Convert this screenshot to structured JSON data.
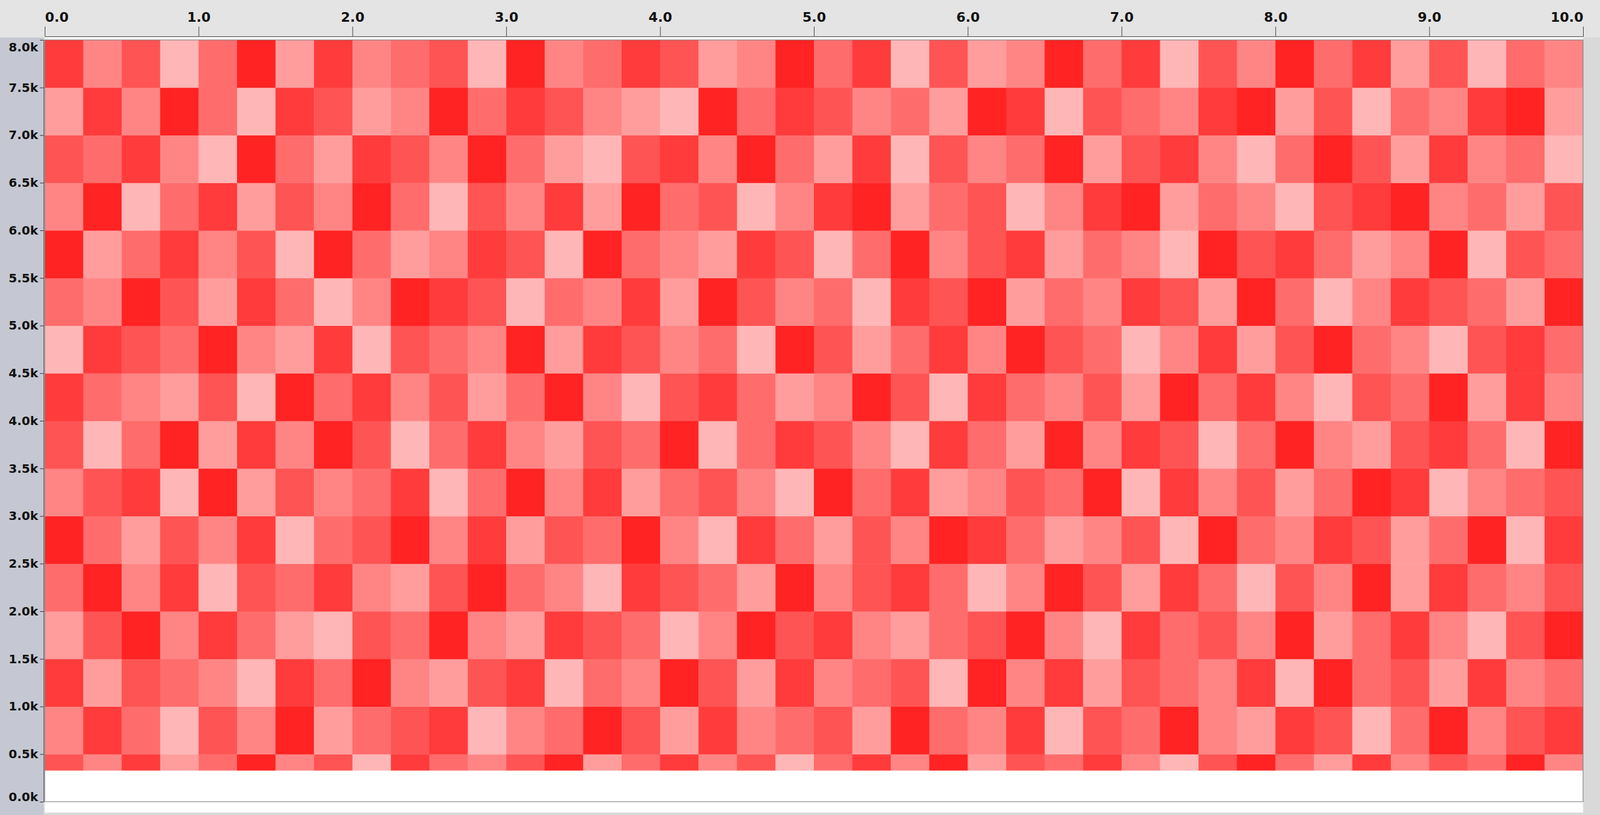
{
  "chart_data": {
    "type": "heatmap",
    "xlim": [
      0,
      10
    ],
    "ylim": [
      0,
      8000
    ],
    "zlim": [
      0,
      1
    ],
    "xticks": [
      {
        "value": 0,
        "label": "0.0"
      },
      {
        "value": 1,
        "label": "1.0"
      },
      {
        "value": 2,
        "label": "2.0"
      },
      {
        "value": 3,
        "label": "3.0"
      },
      {
        "value": 4,
        "label": "4.0"
      },
      {
        "value": 5,
        "label": "5.0"
      },
      {
        "value": 6,
        "label": "6.0"
      },
      {
        "value": 7,
        "label": "7.0"
      },
      {
        "value": 8,
        "label": "8.0"
      },
      {
        "value": 9,
        "label": "9.0"
      },
      {
        "value": 10,
        "label": "10.0"
      }
    ],
    "yticks": [
      {
        "value": 0,
        "label": "0.0k"
      },
      {
        "value": 500,
        "label": "0.5k"
      },
      {
        "value": 1000,
        "label": "1.0k"
      },
      {
        "value": 1500,
        "label": "1.5k"
      },
      {
        "value": 2000,
        "label": "2.0k"
      },
      {
        "value": 2500,
        "label": "2.5k"
      },
      {
        "value": 3000,
        "label": "3.0k"
      },
      {
        "value": 3500,
        "label": "3.5k"
      },
      {
        "value": 4000,
        "label": "4.0k"
      },
      {
        "value": 4500,
        "label": "4.5k"
      },
      {
        "value": 5000,
        "label": "5.0k"
      },
      {
        "value": 5500,
        "label": "5.5k"
      },
      {
        "value": 6000,
        "label": "6.0k"
      },
      {
        "value": 6500,
        "label": "6.5k"
      },
      {
        "value": 7000,
        "label": "7.0k"
      },
      {
        "value": 7500,
        "label": "7.5k"
      },
      {
        "value": 8000,
        "label": "8.0k"
      }
    ],
    "x_bins": [
      0,
      0.25,
      0.5,
      0.75,
      1,
      1.25,
      1.5,
      1.75,
      2,
      2.25,
      2.5,
      2.75,
      3,
      3.25,
      3.5,
      3.75,
      4,
      4.25,
      4.5,
      4.75,
      5,
      5.25,
      5.5,
      5.75,
      6,
      6.25,
      6.5,
      6.75,
      7,
      7.25,
      7.5,
      7.75,
      8,
      8.25,
      8.5,
      8.75,
      9,
      9.25,
      9.5,
      9.75,
      10
    ],
    "y_bins": [
      0,
      330,
      500,
      1000,
      1500,
      2000,
      2500,
      3000,
      3500,
      4000,
      4500,
      5000,
      5500,
      6000,
      6500,
      7000,
      7500,
      8000
    ],
    "cells": [
      [
        0,
        0,
        0,
        0,
        0,
        0,
        0,
        0,
        0,
        0,
        0,
        0,
        0,
        0,
        0,
        0,
        0,
        0,
        0,
        0,
        0,
        0,
        0,
        0,
        0,
        0,
        0,
        0,
        0,
        0,
        0,
        0,
        0,
        0,
        0,
        0,
        0,
        0,
        0,
        0
      ],
      [
        0.7,
        0.5,
        0.8,
        0.4,
        0.6,
        0.9,
        0.5,
        0.7,
        0.3,
        0.8,
        0.6,
        0.5,
        0.7,
        0.9,
        0.4,
        0.6,
        0.8,
        0.5,
        0.7,
        0.3,
        0.6,
        0.8,
        0.5,
        0.9,
        0.4,
        0.7,
        0.6,
        0.8,
        0.5,
        0.3,
        0.7,
        0.9,
        0.6,
        0.4,
        0.8,
        0.5,
        0.7,
        0.6,
        0.9,
        0.5
      ],
      [
        0.5,
        0.8,
        0.6,
        0.3,
        0.7,
        0.5,
        0.9,
        0.4,
        0.6,
        0.7,
        0.8,
        0.3,
        0.5,
        0.6,
        0.9,
        0.7,
        0.4,
        0.8,
        0.5,
        0.6,
        0.7,
        0.4,
        0.9,
        0.6,
        0.5,
        0.8,
        0.3,
        0.7,
        0.6,
        0.9,
        0.5,
        0.4,
        0.8,
        0.7,
        0.3,
        0.6,
        0.9,
        0.5,
        0.7,
        0.8
      ],
      [
        0.8,
        0.4,
        0.7,
        0.6,
        0.5,
        0.3,
        0.8,
        0.6,
        0.9,
        0.5,
        0.4,
        0.7,
        0.8,
        0.3,
        0.6,
        0.5,
        0.9,
        0.7,
        0.4,
        0.8,
        0.5,
        0.6,
        0.7,
        0.3,
        0.9,
        0.5,
        0.8,
        0.4,
        0.7,
        0.6,
        0.5,
        0.8,
        0.3,
        0.9,
        0.6,
        0.7,
        0.4,
        0.8,
        0.5,
        0.6
      ],
      [
        0.4,
        0.7,
        0.9,
        0.5,
        0.8,
        0.6,
        0.4,
        0.3,
        0.7,
        0.6,
        0.9,
        0.5,
        0.4,
        0.8,
        0.7,
        0.6,
        0.3,
        0.5,
        0.9,
        0.7,
        0.8,
        0.5,
        0.4,
        0.6,
        0.7,
        0.9,
        0.5,
        0.3,
        0.8,
        0.6,
        0.7,
        0.5,
        0.9,
        0.4,
        0.6,
        0.8,
        0.5,
        0.3,
        0.7,
        0.9
      ],
      [
        0.6,
        0.9,
        0.5,
        0.8,
        0.3,
        0.7,
        0.6,
        0.8,
        0.5,
        0.4,
        0.7,
        0.9,
        0.6,
        0.5,
        0.3,
        0.8,
        0.7,
        0.6,
        0.4,
        0.9,
        0.5,
        0.7,
        0.8,
        0.6,
        0.3,
        0.5,
        0.9,
        0.7,
        0.4,
        0.8,
        0.6,
        0.3,
        0.7,
        0.5,
        0.9,
        0.4,
        0.8,
        0.6,
        0.5,
        0.7
      ],
      [
        0.9,
        0.6,
        0.4,
        0.7,
        0.5,
        0.8,
        0.3,
        0.6,
        0.7,
        0.9,
        0.5,
        0.8,
        0.4,
        0.7,
        0.6,
        0.9,
        0.5,
        0.3,
        0.8,
        0.6,
        0.4,
        0.7,
        0.5,
        0.9,
        0.8,
        0.6,
        0.4,
        0.5,
        0.7,
        0.3,
        0.9,
        0.6,
        0.5,
        0.8,
        0.7,
        0.4,
        0.6,
        0.9,
        0.3,
        0.8
      ],
      [
        0.5,
        0.7,
        0.8,
        0.3,
        0.9,
        0.4,
        0.7,
        0.5,
        0.6,
        0.8,
        0.3,
        0.6,
        0.9,
        0.5,
        0.8,
        0.4,
        0.6,
        0.7,
        0.5,
        0.3,
        0.9,
        0.6,
        0.8,
        0.4,
        0.5,
        0.7,
        0.6,
        0.9,
        0.3,
        0.8,
        0.5,
        0.7,
        0.4,
        0.6,
        0.9,
        0.8,
        0.3,
        0.5,
        0.6,
        0.7
      ],
      [
        0.7,
        0.3,
        0.6,
        0.9,
        0.4,
        0.8,
        0.5,
        0.9,
        0.7,
        0.3,
        0.6,
        0.8,
        0.5,
        0.4,
        0.7,
        0.6,
        0.9,
        0.3,
        0.6,
        0.8,
        0.7,
        0.5,
        0.3,
        0.8,
        0.6,
        0.4,
        0.9,
        0.5,
        0.8,
        0.7,
        0.3,
        0.6,
        0.9,
        0.5,
        0.4,
        0.7,
        0.8,
        0.6,
        0.3,
        0.9
      ],
      [
        0.8,
        0.6,
        0.5,
        0.4,
        0.7,
        0.3,
        0.9,
        0.6,
        0.8,
        0.5,
        0.7,
        0.4,
        0.6,
        0.9,
        0.5,
        0.3,
        0.7,
        0.8,
        0.6,
        0.4,
        0.5,
        0.9,
        0.7,
        0.3,
        0.8,
        0.6,
        0.5,
        0.7,
        0.4,
        0.9,
        0.6,
        0.8,
        0.5,
        0.3,
        0.7,
        0.6,
        0.9,
        0.4,
        0.8,
        0.5
      ],
      [
        0.3,
        0.8,
        0.7,
        0.6,
        0.9,
        0.5,
        0.4,
        0.8,
        0.3,
        0.7,
        0.6,
        0.5,
        0.9,
        0.4,
        0.8,
        0.7,
        0.5,
        0.6,
        0.3,
        0.9,
        0.7,
        0.4,
        0.6,
        0.8,
        0.5,
        0.9,
        0.7,
        0.6,
        0.3,
        0.5,
        0.8,
        0.4,
        0.7,
        0.9,
        0.6,
        0.5,
        0.3,
        0.7,
        0.8,
        0.6
      ],
      [
        0.6,
        0.5,
        0.9,
        0.7,
        0.4,
        0.8,
        0.6,
        0.3,
        0.5,
        0.9,
        0.8,
        0.7,
        0.3,
        0.6,
        0.5,
        0.8,
        0.4,
        0.9,
        0.7,
        0.5,
        0.6,
        0.3,
        0.8,
        0.7,
        0.9,
        0.4,
        0.6,
        0.5,
        0.8,
        0.7,
        0.4,
        0.9,
        0.6,
        0.3,
        0.5,
        0.8,
        0.7,
        0.6,
        0.4,
        0.9
      ],
      [
        0.9,
        0.4,
        0.6,
        0.8,
        0.5,
        0.7,
        0.3,
        0.9,
        0.6,
        0.4,
        0.5,
        0.8,
        0.7,
        0.3,
        0.9,
        0.6,
        0.5,
        0.4,
        0.8,
        0.7,
        0.3,
        0.6,
        0.9,
        0.5,
        0.7,
        0.8,
        0.4,
        0.6,
        0.5,
        0.3,
        0.9,
        0.7,
        0.8,
        0.6,
        0.4,
        0.5,
        0.9,
        0.3,
        0.7,
        0.6
      ],
      [
        0.5,
        0.9,
        0.3,
        0.6,
        0.8,
        0.4,
        0.7,
        0.5,
        0.9,
        0.6,
        0.3,
        0.7,
        0.5,
        0.8,
        0.4,
        0.9,
        0.6,
        0.7,
        0.3,
        0.5,
        0.8,
        0.9,
        0.4,
        0.6,
        0.7,
        0.3,
        0.5,
        0.8,
        0.9,
        0.4,
        0.6,
        0.5,
        0.3,
        0.7,
        0.8,
        0.9,
        0.5,
        0.6,
        0.4,
        0.7
      ],
      [
        0.7,
        0.6,
        0.8,
        0.5,
        0.3,
        0.9,
        0.6,
        0.4,
        0.8,
        0.7,
        0.5,
        0.9,
        0.6,
        0.4,
        0.3,
        0.7,
        0.8,
        0.5,
        0.9,
        0.6,
        0.4,
        0.8,
        0.3,
        0.7,
        0.5,
        0.6,
        0.9,
        0.4,
        0.7,
        0.8,
        0.5,
        0.3,
        0.6,
        0.9,
        0.7,
        0.4,
        0.8,
        0.5,
        0.6,
        0.3
      ],
      [
        0.4,
        0.8,
        0.5,
        0.9,
        0.6,
        0.3,
        0.8,
        0.7,
        0.4,
        0.5,
        0.9,
        0.6,
        0.8,
        0.7,
        0.5,
        0.4,
        0.3,
        0.9,
        0.6,
        0.8,
        0.7,
        0.5,
        0.6,
        0.4,
        0.9,
        0.8,
        0.3,
        0.7,
        0.6,
        0.5,
        0.8,
        0.9,
        0.4,
        0.7,
        0.3,
        0.6,
        0.5,
        0.8,
        0.9,
        0.4
      ],
      [
        0.8,
        0.5,
        0.7,
        0.3,
        0.6,
        0.9,
        0.4,
        0.8,
        0.5,
        0.6,
        0.7,
        0.3,
        0.9,
        0.5,
        0.6,
        0.8,
        0.7,
        0.4,
        0.5,
        0.9,
        0.6,
        0.8,
        0.3,
        0.7,
        0.4,
        0.5,
        0.9,
        0.6,
        0.8,
        0.3,
        0.7,
        0.5,
        0.9,
        0.6,
        0.8,
        0.4,
        0.7,
        0.3,
        0.6,
        0.5
      ]
    ]
  }
}
